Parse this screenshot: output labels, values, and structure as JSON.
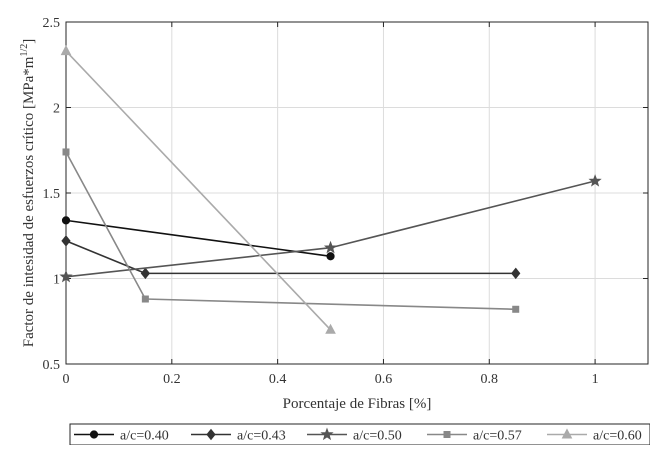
{
  "chart_data": {
    "type": "line",
    "xlabel": "Porcentaje de Fibras [%]",
    "ylabel_main": "Factor de intesidad de esfuerzos crítico [MPa*m",
    "ylabel_sup": "1/2",
    "ylabel_end": "]",
    "xlim": [
      0,
      1.1
    ],
    "ylim": [
      0.5,
      2.5
    ],
    "xticks": [
      0,
      0.2,
      0.4,
      0.6,
      0.8,
      1
    ],
    "xtick_labels": [
      "0",
      "0.2",
      "0.4",
      "0.6",
      "0.8",
      "1"
    ],
    "yticks": [
      0.5,
      1,
      1.5,
      2,
      2.5
    ],
    "ytick_labels": [
      "0.5",
      "1",
      "1.5",
      "2",
      "2.5"
    ],
    "grid": true,
    "legend_position": "bottom",
    "series": [
      {
        "name": "a/c=0.40",
        "color": "#111111",
        "marker": "circle",
        "x": [
          0,
          0.5
        ],
        "y": [
          1.34,
          1.13
        ]
      },
      {
        "name": "a/c=0.43",
        "color": "#333333",
        "marker": "diamond",
        "x": [
          0,
          0.15,
          0.85
        ],
        "y": [
          1.22,
          1.03,
          1.03
        ]
      },
      {
        "name": "a/c=0.50",
        "color": "#555555",
        "marker": "star",
        "x": [
          0,
          0.5,
          1
        ],
        "y": [
          1.01,
          1.18,
          1.57
        ]
      },
      {
        "name": "a/c=0.57",
        "color": "#888888",
        "marker": "square",
        "x": [
          0,
          0.15,
          0.85
        ],
        "y": [
          1.74,
          0.88,
          0.82
        ]
      },
      {
        "name": "a/c=0.60",
        "color": "#aaaaaa",
        "marker": "triangle",
        "x": [
          0,
          0.5
        ],
        "y": [
          2.33,
          0.7
        ]
      }
    ]
  }
}
